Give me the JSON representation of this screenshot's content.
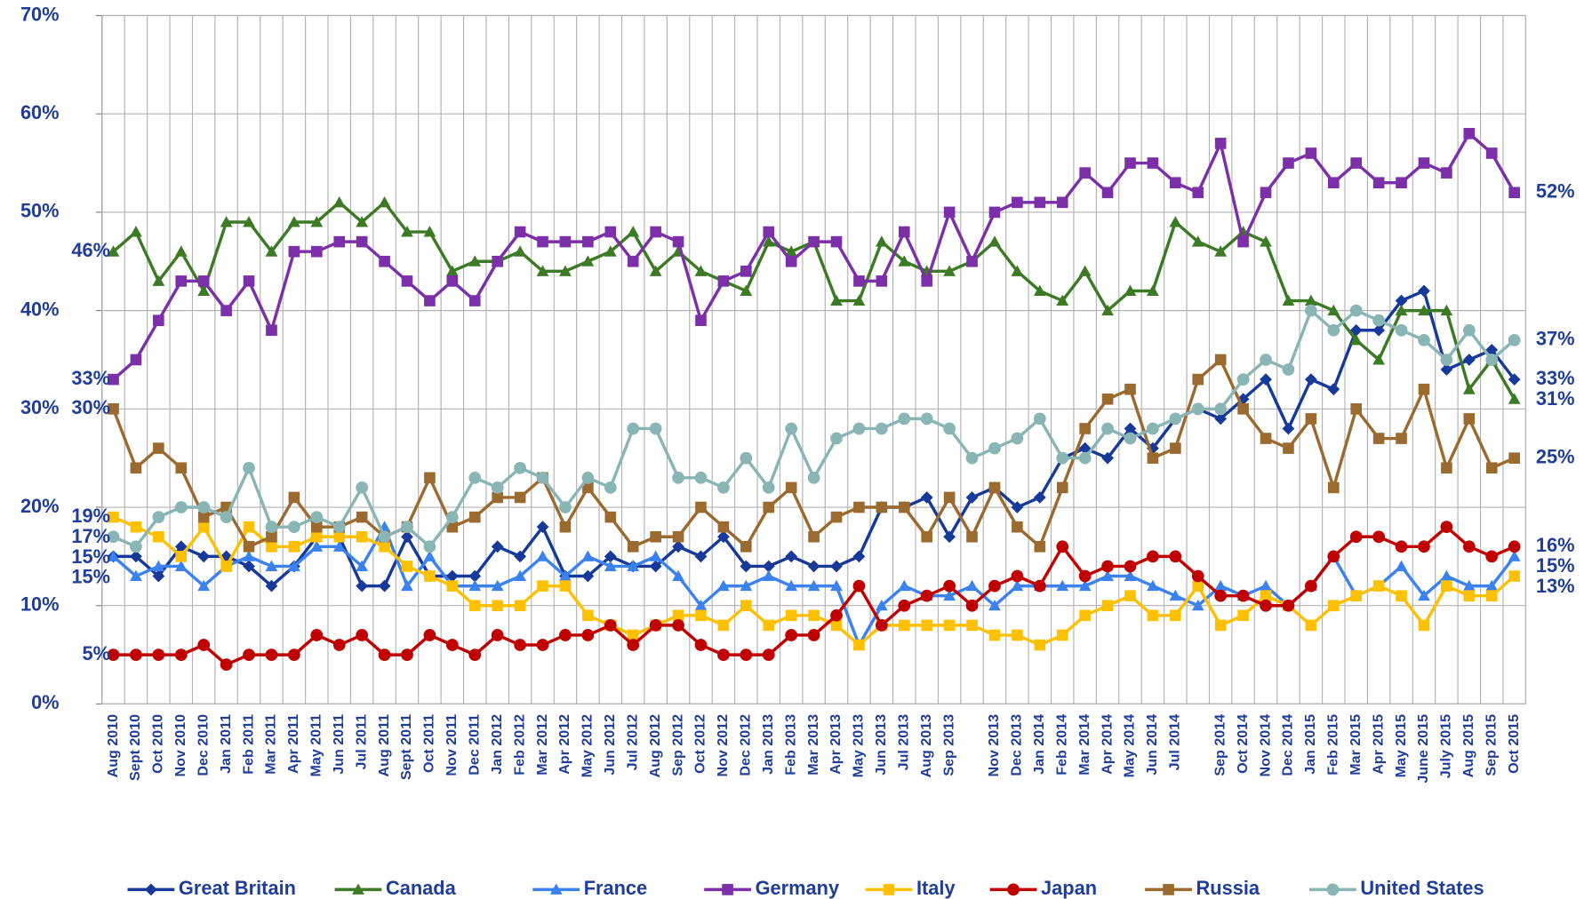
{
  "chart_data": {
    "type": "line",
    "categories": [
      "Aug 2010",
      "Sept 2010",
      "Oct 2010",
      "Nov 2010",
      "Dec 2010",
      "Jan 2011",
      "Feb 2011",
      "Mar 2011",
      "Apr 2011",
      "May 2011",
      "Jun 2011",
      "Jul 2011",
      "Aug 2011",
      "Sept 2011",
      "Oct 2011",
      "Nov 2011",
      "Dec 2011",
      "Jan 2012",
      "Feb 2012",
      "Mar 2012",
      "Apr 2012",
      "May 2012",
      "Jun 2012",
      "Jul 2012",
      "Aug 2012",
      "Sep 2012",
      "Oct 2012",
      "Nov 2012",
      "Dec 2012",
      "Jan 2013",
      "Feb 2013",
      "Mar 2013",
      "Apr 2013",
      "May 2013",
      "Jun 2013",
      "Jul 2013",
      "Aug 2013",
      "Sep 2013",
      null,
      "Nov 2013",
      "Dec 2013",
      "Jan 2014",
      "Feb 2014",
      "Mar 2014",
      "Apr 2014",
      "May 2014",
      "Jun 2014",
      "Jul 2014",
      null,
      "Sep 2014",
      "Oct 2014",
      "Nov 2014",
      "Dec 2014",
      "Jan 2015",
      "Feb 2015",
      "Mar 2015",
      "Apr 2015",
      "May 2015",
      "June 2015",
      "July 2015",
      "Aug 2015",
      "Sep 2015",
      "Oct 2015"
    ],
    "series": [
      {
        "name": "Great Britain",
        "color": "#16399a",
        "marker": "diamond",
        "values": [
          15,
          15,
          13,
          16,
          15,
          15,
          14,
          12,
          14,
          17,
          17,
          12,
          12,
          17,
          13,
          13,
          13,
          16,
          15,
          18,
          13,
          13,
          15,
          14,
          14,
          16,
          15,
          17,
          14,
          14,
          15,
          14,
          14,
          15,
          20,
          20,
          21,
          17,
          21,
          22,
          20,
          21,
          25,
          26,
          25,
          28,
          26,
          29,
          30,
          29,
          31,
          33,
          28,
          33,
          32,
          38,
          38,
          41,
          42,
          34,
          35,
          36,
          33
        ],
        "value_labels": [
          "15%",
          null,
          null,
          null,
          null,
          null,
          null,
          null,
          null,
          null,
          null,
          null,
          null,
          null,
          null,
          null,
          null,
          null,
          null,
          null,
          null,
          null,
          null,
          null,
          null,
          null,
          null,
          null,
          null,
          null,
          null,
          null,
          null,
          null,
          null,
          null,
          null,
          null,
          null,
          null,
          null,
          null,
          null,
          null,
          null,
          null,
          null,
          null,
          null,
          null,
          null,
          null,
          null,
          null,
          null,
          null,
          null,
          null,
          null,
          null,
          null,
          null,
          "33%"
        ]
      },
      {
        "name": "Canada",
        "color": "#3d7a25",
        "marker": "triangle",
        "values": [
          46,
          48,
          43,
          46,
          42,
          49,
          49,
          46,
          49,
          49,
          51,
          49,
          51,
          48,
          48,
          44,
          45,
          45,
          46,
          44,
          44,
          45,
          46,
          48,
          44,
          46,
          44,
          43,
          42,
          47,
          46,
          47,
          41,
          41,
          47,
          45,
          44,
          44,
          45,
          47,
          44,
          42,
          41,
          44,
          40,
          42,
          42,
          49,
          47,
          46,
          48,
          47,
          41,
          41,
          40,
          37,
          35,
          40,
          40,
          40,
          32,
          35,
          31
        ],
        "value_labels": [
          "46%",
          null,
          null,
          null,
          null,
          null,
          null,
          null,
          null,
          null,
          null,
          null,
          null,
          null,
          null,
          null,
          null,
          null,
          null,
          null,
          null,
          null,
          null,
          null,
          null,
          null,
          null,
          null,
          null,
          null,
          null,
          null,
          null,
          null,
          null,
          null,
          null,
          null,
          null,
          null,
          null,
          null,
          null,
          null,
          null,
          null,
          null,
          null,
          null,
          null,
          null,
          null,
          null,
          null,
          null,
          null,
          null,
          null,
          null,
          null,
          null,
          null,
          "31%"
        ]
      },
      {
        "name": "France",
        "color": "#3b82f0",
        "marker": "triangle",
        "values": [
          15,
          13,
          14,
          14,
          12,
          14,
          15,
          14,
          14,
          16,
          16,
          14,
          18,
          12,
          15,
          12,
          12,
          12,
          13,
          15,
          13,
          15,
          14,
          14,
          15,
          13,
          10,
          12,
          12,
          13,
          12,
          12,
          12,
          6,
          10,
          12,
          11,
          11,
          12,
          10,
          12,
          12,
          12,
          12,
          13,
          13,
          12,
          11,
          10,
          12,
          11,
          12,
          10,
          12,
          15,
          11,
          12,
          14,
          11,
          13,
          12,
          12,
          15
        ],
        "value_labels": [
          "15%",
          null,
          null,
          null,
          null,
          null,
          null,
          null,
          null,
          null,
          null,
          null,
          null,
          null,
          null,
          null,
          null,
          null,
          null,
          null,
          null,
          null,
          null,
          null,
          null,
          null,
          null,
          null,
          null,
          null,
          null,
          null,
          null,
          null,
          null,
          null,
          null,
          null,
          null,
          null,
          null,
          null,
          null,
          null,
          null,
          null,
          null,
          null,
          null,
          null,
          null,
          null,
          null,
          null,
          null,
          null,
          null,
          null,
          null,
          null,
          null,
          null,
          "15%"
        ]
      },
      {
        "name": "Germany",
        "color": "#7b2fa8",
        "marker": "square",
        "values": [
          33,
          35,
          39,
          43,
          43,
          40,
          43,
          38,
          46,
          46,
          47,
          47,
          45,
          43,
          41,
          43,
          41,
          45,
          48,
          47,
          47,
          47,
          48,
          45,
          48,
          47,
          39,
          43,
          44,
          48,
          45,
          47,
          47,
          43,
          43,
          48,
          43,
          50,
          45,
          50,
          51,
          51,
          51,
          54,
          52,
          55,
          55,
          53,
          52,
          57,
          47,
          52,
          55,
          56,
          53,
          55,
          53,
          53,
          55,
          54,
          58,
          56,
          52
        ],
        "value_labels": [
          "33%",
          null,
          null,
          null,
          null,
          null,
          null,
          null,
          null,
          null,
          null,
          null,
          null,
          null,
          null,
          null,
          null,
          null,
          null,
          null,
          null,
          null,
          null,
          null,
          null,
          null,
          null,
          null,
          null,
          null,
          null,
          null,
          null,
          null,
          null,
          null,
          null,
          null,
          null,
          null,
          null,
          null,
          null,
          null,
          null,
          null,
          null,
          null,
          null,
          null,
          null,
          null,
          null,
          null,
          null,
          null,
          null,
          null,
          null,
          null,
          null,
          null,
          "52%"
        ]
      },
      {
        "name": "Italy",
        "color": "#ffc000",
        "marker": "square",
        "values": [
          19,
          18,
          17,
          15,
          18,
          14,
          18,
          16,
          16,
          17,
          17,
          17,
          16,
          14,
          13,
          12,
          10,
          10,
          10,
          12,
          12,
          9,
          8,
          7,
          8,
          9,
          9,
          8,
          10,
          8,
          9,
          9,
          8,
          6,
          8,
          8,
          8,
          8,
          8,
          7,
          7,
          6,
          7,
          9,
          10,
          11,
          9,
          9,
          12,
          8,
          9,
          11,
          10,
          8,
          10,
          11,
          12,
          11,
          8,
          12,
          11,
          11,
          13
        ],
        "value_labels": [
          "19%",
          null,
          null,
          null,
          null,
          null,
          null,
          null,
          null,
          null,
          null,
          null,
          null,
          null,
          null,
          null,
          null,
          null,
          null,
          null,
          null,
          null,
          null,
          null,
          null,
          null,
          null,
          null,
          null,
          null,
          null,
          null,
          null,
          null,
          null,
          null,
          null,
          null,
          null,
          null,
          null,
          null,
          null,
          null,
          null,
          null,
          null,
          null,
          null,
          null,
          null,
          null,
          null,
          null,
          null,
          null,
          null,
          null,
          null,
          null,
          null,
          null,
          "13%"
        ]
      },
      {
        "name": "Japan",
        "color": "#c00000",
        "marker": "circle",
        "values": [
          5,
          5,
          5,
          5,
          6,
          4,
          5,
          5,
          5,
          7,
          6,
          7,
          5,
          5,
          7,
          6,
          5,
          7,
          6,
          6,
          7,
          7,
          8,
          6,
          8,
          8,
          6,
          5,
          5,
          5,
          7,
          7,
          9,
          12,
          8,
          10,
          11,
          12,
          10,
          12,
          13,
          12,
          16,
          13,
          14,
          14,
          15,
          15,
          13,
          11,
          11,
          10,
          10,
          12,
          15,
          17,
          17,
          16,
          16,
          18,
          16,
          15,
          16
        ],
        "value_labels": [
          "5%",
          null,
          null,
          null,
          null,
          null,
          null,
          null,
          null,
          null,
          null,
          null,
          null,
          null,
          null,
          null,
          null,
          null,
          null,
          null,
          null,
          null,
          null,
          null,
          null,
          null,
          null,
          null,
          null,
          null,
          null,
          null,
          null,
          null,
          null,
          null,
          null,
          null,
          null,
          null,
          null,
          null,
          null,
          null,
          null,
          null,
          null,
          null,
          null,
          null,
          null,
          null,
          null,
          null,
          null,
          null,
          null,
          null,
          null,
          null,
          null,
          null,
          "16%"
        ]
      },
      {
        "name": "Russia",
        "color": "#9b6a2f",
        "marker": "square",
        "values": [
          30,
          24,
          26,
          24,
          19,
          20,
          16,
          17,
          21,
          18,
          18,
          19,
          17,
          18,
          23,
          18,
          19,
          21,
          21,
          23,
          18,
          22,
          19,
          16,
          17,
          17,
          20,
          18,
          16,
          20,
          22,
          17,
          19,
          20,
          20,
          20,
          17,
          21,
          17,
          22,
          18,
          16,
          22,
          28,
          31,
          32,
          25,
          26,
          33,
          35,
          30,
          27,
          26,
          29,
          22,
          30,
          27,
          27,
          32,
          24,
          29,
          24,
          25
        ],
        "value_labels": [
          "30%",
          null,
          null,
          null,
          null,
          null,
          null,
          null,
          null,
          null,
          null,
          null,
          null,
          null,
          null,
          null,
          null,
          null,
          null,
          null,
          null,
          null,
          null,
          null,
          null,
          null,
          null,
          null,
          null,
          null,
          null,
          null,
          null,
          null,
          null,
          null,
          null,
          null,
          null,
          null,
          null,
          null,
          null,
          null,
          null,
          null,
          null,
          null,
          null,
          null,
          null,
          null,
          null,
          null,
          null,
          null,
          null,
          null,
          null,
          null,
          null,
          null,
          "25%"
        ]
      },
      {
        "name": "United States",
        "color": "#8ab5b5",
        "marker": "circle",
        "values": [
          17,
          16,
          19,
          20,
          20,
          19,
          24,
          18,
          18,
          19,
          18,
          22,
          17,
          18,
          16,
          19,
          23,
          22,
          24,
          23,
          20,
          23,
          22,
          28,
          28,
          23,
          23,
          22,
          25,
          22,
          28,
          23,
          27,
          28,
          28,
          29,
          29,
          28,
          25,
          26,
          27,
          29,
          25,
          25,
          28,
          27,
          28,
          29,
          30,
          30,
          33,
          35,
          34,
          40,
          38,
          40,
          39,
          38,
          37,
          35,
          38,
          35,
          37
        ],
        "value_labels": [
          "17%",
          null,
          null,
          null,
          null,
          null,
          null,
          null,
          null,
          null,
          null,
          null,
          null,
          null,
          null,
          null,
          null,
          null,
          null,
          null,
          null,
          null,
          null,
          null,
          null,
          null,
          null,
          null,
          null,
          null,
          null,
          null,
          null,
          null,
          null,
          null,
          null,
          null,
          null,
          null,
          null,
          null,
          null,
          null,
          null,
          null,
          null,
          null,
          null,
          null,
          null,
          null,
          null,
          null,
          null,
          null,
          null,
          null,
          null,
          null,
          null,
          null,
          "37%"
        ]
      }
    ],
    "ylim": [
      0,
      70
    ],
    "yticks": [
      {
        "value": 0,
        "label": "0%"
      },
      {
        "value": 10,
        "label": "10%"
      },
      {
        "value": 20,
        "label": "20%"
      },
      {
        "value": 30,
        "label": "30%"
      },
      {
        "value": 40,
        "label": "40%"
      },
      {
        "value": 50,
        "label": "50%"
      },
      {
        "value": 60,
        "label": "60%"
      },
      {
        "value": 70,
        "label": "70%"
      }
    ],
    "grid": true
  }
}
